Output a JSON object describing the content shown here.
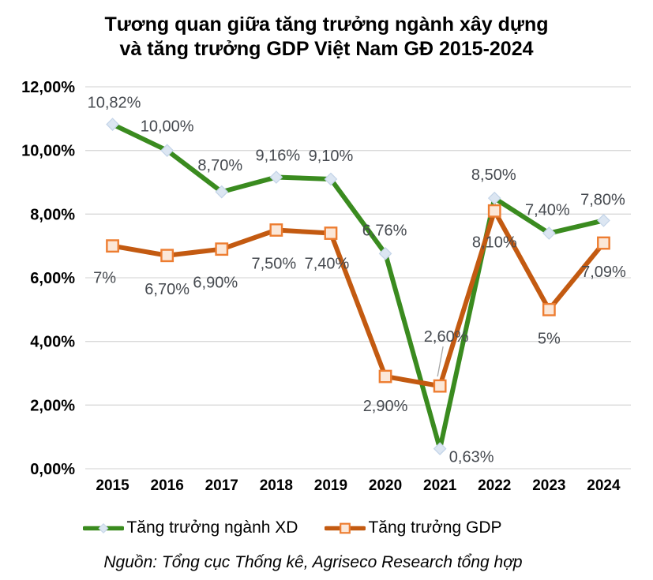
{
  "title": {
    "line1": "Tương quan giữa tăng trưởng ngành xây dựng",
    "line2": "và tăng trưởng GDP Việt Nam GĐ 2015-2024"
  },
  "source": "Nguồn: Tổng cục Thống kê, Agriseco Research tổng hợp",
  "legend": {
    "items": [
      {
        "label": "Tăng trưởng ngành XD"
      },
      {
        "label": "Tăng trưởng GDP"
      }
    ]
  },
  "colors": {
    "gridline": "#d9d9d9",
    "axis_label": "#000000",
    "data_label": "#45494f",
    "leader_line": "#a6a6a6",
    "background": "#ffffff"
  },
  "chart_data": {
    "type": "line",
    "title": "Tương quan giữa tăng trưởng ngành xây dựng và tăng trưởng GDP Việt Nam GĐ 2015-2024",
    "categories": [
      "2015",
      "2016",
      "2017",
      "2018",
      "2019",
      "2020",
      "2021",
      "2022",
      "2023",
      "2024"
    ],
    "ylim": [
      0,
      12
    ],
    "ytick_step": 2,
    "ytick_labels": [
      "0,00%",
      "2,00%",
      "4,00%",
      "6,00%",
      "8,00%",
      "10,00%",
      "12,00%"
    ],
    "grid": "horizontal",
    "legend_position": "bottom",
    "series": [
      {
        "name": "Tăng trưởng ngành XD",
        "color": "#3a8b1f",
        "marker": "diamond",
        "marker_fill": "#dce6f2",
        "marker_stroke": "#c3d4e8",
        "values": [
          10.82,
          10.0,
          8.7,
          9.16,
          9.1,
          6.76,
          0.63,
          8.5,
          7.4,
          7.8
        ],
        "labels": [
          "10,82%",
          "10,00%",
          "8,70%",
          "9,16%",
          "9,10%",
          "6,76%",
          "0,63%",
          "8,50%",
          "7,40%",
          "7,80%"
        ],
        "label_offsets": [
          [
            2,
            -28
          ],
          [
            0,
            -31
          ],
          [
            -2,
            -34
          ],
          [
            2,
            -28
          ],
          [
            0,
            -30
          ],
          [
            -1,
            -30
          ],
          [
            40,
            10
          ],
          [
            -1,
            -30
          ],
          [
            -2,
            -30
          ],
          [
            -1,
            -27
          ]
        ]
      },
      {
        "name": "Tăng trưởng GDP",
        "color": "#c35a11",
        "marker": "square",
        "marker_fill": "#fbe7d8",
        "marker_stroke": "#ed7d31",
        "values": [
          7.0,
          6.7,
          6.9,
          7.5,
          7.4,
          2.9,
          2.6,
          8.1,
          5.0,
          7.09
        ],
        "labels": [
          "7%",
          "6,70%",
          "6,90%",
          "7,50%",
          "7,40%",
          "2,90%",
          "2,60%",
          "8,10%",
          "5%",
          "7,09%"
        ],
        "label_offsets": [
          [
            -10,
            40
          ],
          [
            0,
            42
          ],
          [
            -8,
            42
          ],
          [
            -3,
            42
          ],
          [
            -5,
            38
          ],
          [
            0,
            37
          ],
          [
            8,
            -63
          ],
          [
            0,
            39
          ],
          [
            0,
            36
          ],
          [
            0,
            36
          ]
        ],
        "leader_lines": [
          {
            "index": 6,
            "from": [
              4,
              -50
            ],
            "to": [
              -3,
              -12
            ]
          }
        ]
      }
    ]
  }
}
